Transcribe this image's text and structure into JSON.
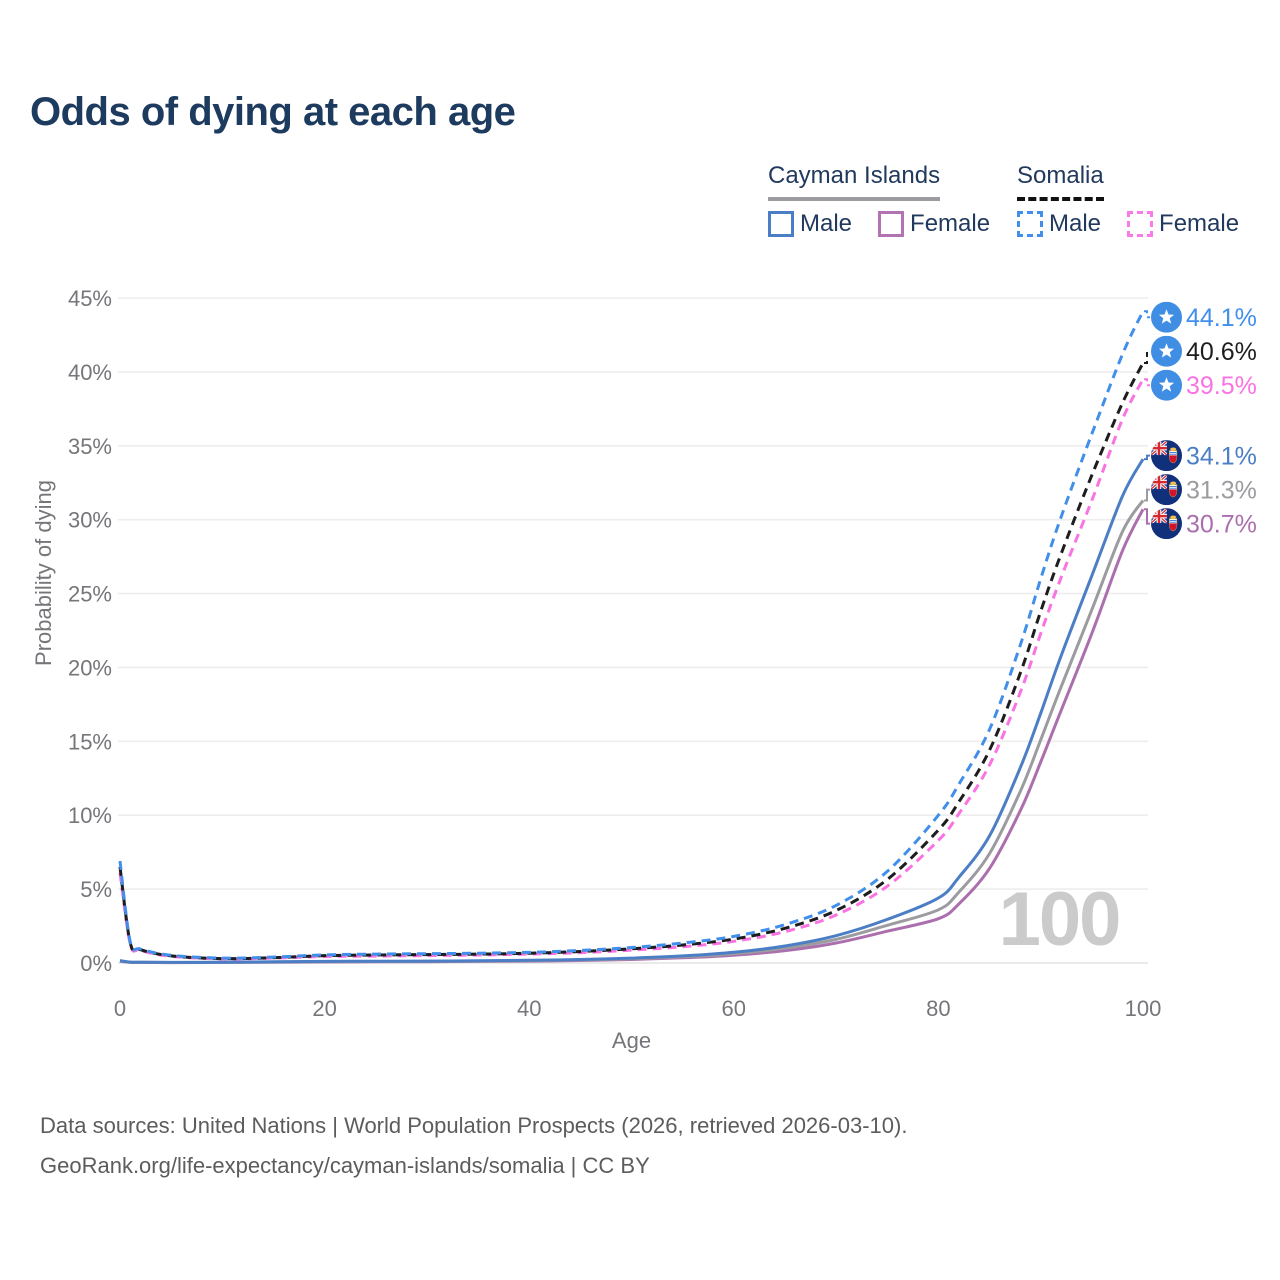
{
  "title": "Odds of dying at each age",
  "legend": {
    "groups": [
      {
        "name": "Cayman Islands",
        "line_style": "solid",
        "line_color": "#9c9ca0",
        "items": [
          {
            "label": "Male",
            "color": "#4b7ec5",
            "style": "solid"
          },
          {
            "label": "Female",
            "color": "#b173b1",
            "style": "solid"
          }
        ]
      },
      {
        "name": "Somalia",
        "line_style": "dashed",
        "line_color": "#111111",
        "items": [
          {
            "label": "Male",
            "color": "#418fea",
            "style": "dashed"
          },
          {
            "label": "Female",
            "color": "#fb7ae8",
            "style": "dashed"
          }
        ]
      }
    ]
  },
  "chart_data": {
    "type": "line",
    "title": "Odds of dying at each age",
    "xlabel": "Age",
    "ylabel": "Probability of dying",
    "xlim": [
      0,
      100
    ],
    "ylim_percent": [
      0,
      45
    ],
    "x_ticks": [
      0,
      20,
      40,
      60,
      80,
      100
    ],
    "y_ticks_percent": [
      0,
      5,
      10,
      15,
      20,
      25,
      30,
      35,
      40,
      45
    ],
    "grid": "horizontal-light",
    "legend_position": "top-right",
    "watermark": "100",
    "ages": [
      0,
      1,
      2,
      5,
      10,
      15,
      20,
      25,
      30,
      35,
      40,
      45,
      50,
      55,
      60,
      65,
      70,
      75,
      80,
      82,
      85,
      88,
      90,
      92,
      95,
      98,
      100
    ],
    "series": [
      {
        "id": "cayman-islands-female",
        "country": "Cayman Islands",
        "sex": "Female",
        "color": "#ab6fae",
        "dash": false,
        "flag": "cayman",
        "end_value_percent": 30.7,
        "end_label": "30.7%",
        "values": [
          0.12,
          0.05,
          0.04,
          0.03,
          0.04,
          0.055,
          0.07,
          0.08,
          0.09,
          0.11,
          0.13,
          0.17,
          0.24,
          0.35,
          0.53,
          0.84,
          1.35,
          2.15,
          3.0,
          4.0,
          6.4,
          10.3,
          13.6,
          17.1,
          22.3,
          27.9,
          30.7
        ]
      },
      {
        "id": "cayman-islands-both",
        "country": "Cayman Islands",
        "sex": "Both",
        "color": "#9c9ca0",
        "dash": false,
        "flag": "cayman",
        "end_value_percent": 31.3,
        "end_label": "31.3%",
        "values": [
          0.14,
          0.055,
          0.045,
          0.035,
          0.045,
          0.07,
          0.09,
          0.1,
          0.11,
          0.13,
          0.16,
          0.21,
          0.29,
          0.42,
          0.63,
          1.0,
          1.6,
          2.55,
          3.6,
          4.8,
          7.4,
          11.6,
          15.1,
          18.7,
          23.9,
          29.2,
          31.3
        ]
      },
      {
        "id": "cayman-islands-male",
        "country": "Cayman Islands",
        "sex": "Male",
        "color": "#4b7ec5",
        "dash": false,
        "flag": "cayman",
        "end_value_percent": 34.1,
        "end_label": "34.1%",
        "values": [
          0.16,
          0.06,
          0.05,
          0.04,
          0.05,
          0.08,
          0.11,
          0.12,
          0.13,
          0.15,
          0.18,
          0.24,
          0.33,
          0.48,
          0.73,
          1.15,
          1.85,
          2.95,
          4.4,
          5.8,
          8.6,
          13.2,
          16.9,
          20.8,
          26.2,
          31.6,
          34.1
        ]
      },
      {
        "id": "somalia-female",
        "country": "Somalia",
        "sex": "Female",
        "color": "#f973e3",
        "dash": true,
        "flag": "somalia",
        "end_value_percent": 39.5,
        "end_label": "39.5%",
        "values": [
          6.1,
          1.3,
          0.85,
          0.45,
          0.28,
          0.33,
          0.44,
          0.47,
          0.5,
          0.54,
          0.6,
          0.7,
          0.87,
          1.1,
          1.47,
          2.12,
          3.25,
          5.2,
          8.3,
          10.1,
          13.4,
          18.3,
          22.3,
          26.1,
          31.3,
          36.8,
          39.5
        ]
      },
      {
        "id": "somalia-both",
        "country": "Somalia",
        "sex": "Both",
        "color": "#1d1d1f",
        "dash": true,
        "flag": "somalia",
        "end_value_percent": 40.6,
        "end_label": "40.6%",
        "values": [
          6.5,
          1.38,
          0.9,
          0.48,
          0.3,
          0.36,
          0.5,
          0.54,
          0.57,
          0.6,
          0.66,
          0.78,
          0.96,
          1.22,
          1.62,
          2.35,
          3.55,
          5.65,
          9.0,
          10.9,
          14.4,
          19.6,
          23.8,
          27.7,
          33.0,
          37.9,
          40.6
        ]
      },
      {
        "id": "somalia-male",
        "country": "Somalia",
        "sex": "Male",
        "color": "#418fea",
        "dash": true,
        "flag": "somalia",
        "end_value_percent": 44.1,
        "end_label": "44.1%",
        "values": [
          6.9,
          1.45,
          0.95,
          0.52,
          0.33,
          0.4,
          0.55,
          0.6,
          0.63,
          0.66,
          0.72,
          0.85,
          1.05,
          1.35,
          1.8,
          2.6,
          3.9,
          6.2,
          10.0,
          12.1,
          15.8,
          21.5,
          26.0,
          30.2,
          35.8,
          41.2,
          44.1
        ]
      }
    ]
  },
  "footer": {
    "line1": "Data sources: United Nations | World Population Prospects (2026, retrieved 2026-03-10).",
    "line2": "GeoRank.org/life-expectancy/cayman-islands/somalia | CC BY"
  }
}
